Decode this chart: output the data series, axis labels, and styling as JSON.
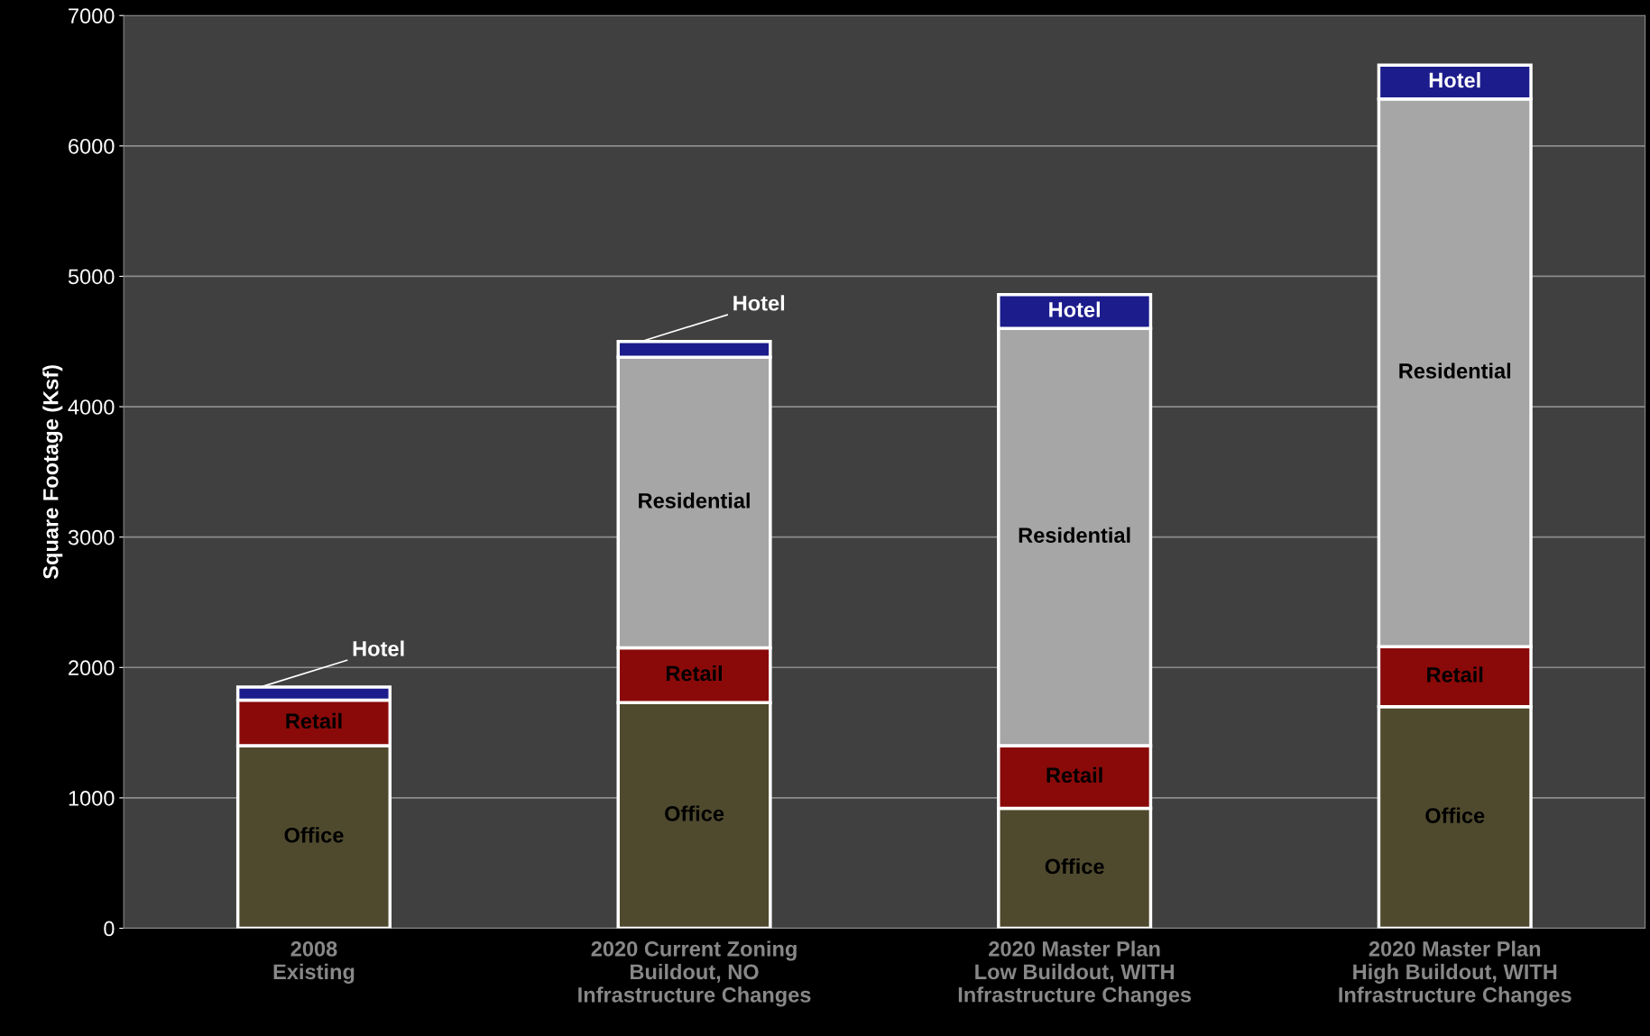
{
  "chart_data": {
    "type": "bar",
    "stacked": true,
    "ylabel": "Square Footage (Ksf)",
    "categories": [
      "2008\nExisting",
      "2020 Current Zoning\nBuildout, NO\nInfrastructure Changes",
      "2020 Master Plan\nLow Buildout, WITH\nInfrastructure Changes",
      "2020 Master Plan\nHigh Buildout, WITH\nInfrastructure Changes"
    ],
    "series": [
      {
        "name": "Office",
        "color": "#4f4a2e",
        "values": [
          1400,
          1730,
          920,
          1700
        ]
      },
      {
        "name": "Retail",
        "color": "#8a0a0a",
        "values": [
          350,
          420,
          480,
          460
        ]
      },
      {
        "name": "Residential",
        "color": "#a6a6a6",
        "values": [
          null,
          2230,
          3200,
          4200
        ]
      },
      {
        "name": "Hotel",
        "color": "#1c1c8c",
        "values": [
          100,
          120,
          260,
          260
        ]
      }
    ],
    "ylim": [
      0,
      7000
    ],
    "yticks": [
      0,
      1000,
      2000,
      3000,
      4000,
      5000,
      6000,
      7000
    ],
    "grid": "y",
    "legend": false
  }
}
